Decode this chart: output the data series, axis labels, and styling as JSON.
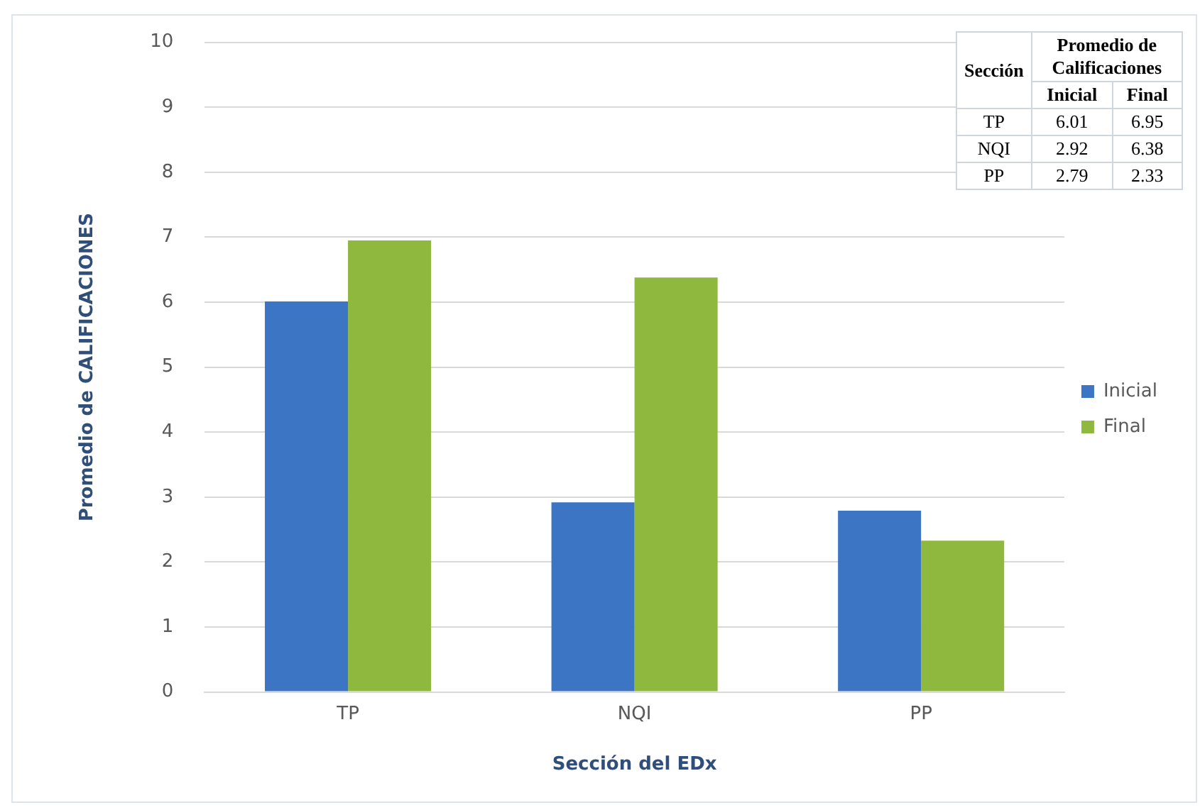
{
  "chart_data": {
    "type": "bar",
    "xlabel": "Sección del EDx",
    "ylabel": "Promedio de CALIFICACIONES",
    "categories": [
      "TP",
      "NQI",
      "PP"
    ],
    "series": [
      {
        "name": "Inicial",
        "color": "#3b75c3",
        "values": [
          6.01,
          2.92,
          2.79
        ]
      },
      {
        "name": "Final",
        "color": "#8fb83f",
        "values": [
          6.95,
          6.38,
          2.33
        ]
      }
    ],
    "ylim": [
      0,
      10
    ],
    "yticks": [
      0,
      1,
      2,
      3,
      4,
      5,
      6,
      7,
      8,
      9,
      10
    ],
    "grid": "y",
    "legend": "right",
    "annotations": [
      "Sección",
      "Promedio de Calificaciones",
      "6.01",
      "6.95",
      "2.92",
      "6.38",
      "2.79",
      "2.33"
    ]
  }
}
